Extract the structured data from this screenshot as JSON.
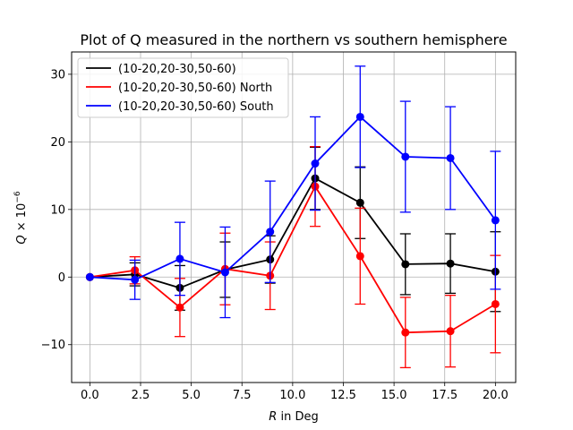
{
  "chart_data": {
    "type": "line",
    "title": "Plot of Q measured in the northern vs southern hemisphere",
    "xlabel": "R in Deg",
    "ylabel": "Q × 10⁻⁶",
    "xlim": [
      -0.9,
      21.0
    ],
    "ylim": [
      -15.6,
      33.3
    ],
    "x_ticks": [
      0.0,
      2.5,
      5.0,
      7.5,
      10.0,
      12.5,
      15.0,
      17.5,
      20.0
    ],
    "x_tick_labels": [
      "0.0",
      "2.5",
      "5.0",
      "7.5",
      "10.0",
      "12.5",
      "15.0",
      "17.5",
      "20.0"
    ],
    "y_ticks": [
      -10,
      0,
      10,
      20,
      30
    ],
    "y_tick_labels": [
      "−10",
      "0",
      "10",
      "20",
      "30"
    ],
    "grid": true,
    "legend_position": "top-left",
    "x": [
      0.0,
      2.22,
      4.44,
      6.67,
      8.89,
      11.11,
      13.33,
      15.56,
      17.78,
      20.0
    ],
    "series": [
      {
        "name": "(10-20,20-30,50-60)",
        "color": "#000000",
        "values": [
          0.0,
          0.4,
          -1.6,
          1.1,
          2.6,
          14.6,
          11.0,
          1.9,
          2.0,
          0.8
        ],
        "err_low": [
          0.0,
          1.7,
          3.3,
          4.1,
          3.5,
          4.6,
          5.3,
          4.5,
          4.4,
          5.9
        ],
        "err_high": [
          0.0,
          1.7,
          3.3,
          4.1,
          3.5,
          4.6,
          5.3,
          4.5,
          4.4,
          5.9
        ]
      },
      {
        "name": "(10-20,20-30,50-60) North",
        "color": "#ff0000",
        "values": [
          0.0,
          1.0,
          -4.5,
          1.2,
          0.2,
          13.4,
          3.1,
          -8.2,
          -8.0,
          -4.0
        ],
        "err_low": [
          0.0,
          2.0,
          4.3,
          5.3,
          5.0,
          5.9,
          7.1,
          5.2,
          5.3,
          7.2
        ],
        "err_high": [
          0.0,
          2.0,
          4.3,
          5.3,
          5.0,
          5.9,
          7.1,
          5.2,
          5.3,
          7.2
        ]
      },
      {
        "name": "(10-20,20-30,50-60) South",
        "color": "#0000ff",
        "values": [
          0.0,
          -0.4,
          2.7,
          0.7,
          6.7,
          16.8,
          23.7,
          17.8,
          17.6,
          8.4
        ],
        "err_low": [
          0.0,
          2.9,
          5.4,
          6.7,
          7.5,
          6.9,
          7.5,
          8.2,
          7.6,
          10.2
        ],
        "err_high": [
          0.0,
          2.9,
          5.4,
          6.7,
          7.5,
          6.9,
          7.5,
          8.2,
          7.6,
          10.2
        ]
      }
    ]
  }
}
